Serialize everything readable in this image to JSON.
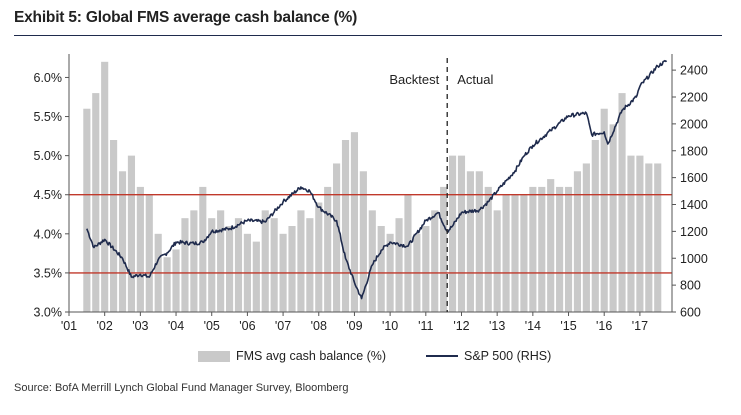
{
  "title": "Exhibit 5: Global FMS average cash balance (%)",
  "source": "Source: BofA Merrill Lynch Global Fund Manager Survey, Bloomberg",
  "legend": {
    "bars": "FMS avg cash balance (%)",
    "line": "S&P 500 (RHS)"
  },
  "annotations": {
    "left": "Backtest",
    "right": "Actual"
  },
  "colors": {
    "bars": "#c9c9c9",
    "line": "#1f2b4d",
    "threshold": "#c0392b",
    "divider": "#222222"
  },
  "chart_data": {
    "type": "bar",
    "title": "Exhibit 5: Global FMS average cash balance (%)",
    "x_ticks": [
      "'01",
      "'02",
      "'03",
      "'04",
      "'05",
      "'06",
      "'07",
      "'08",
      "'09",
      "'10",
      "'11",
      "'12",
      "'13",
      "'14",
      "'15",
      "'16",
      "'17"
    ],
    "y_left": {
      "range": [
        3.0,
        6.3
      ],
      "ticks": [
        "3.0%",
        "3.5%",
        "4.0%",
        "4.5%",
        "5.0%",
        "5.5%",
        "6.0%"
      ],
      "tick_values": [
        3.0,
        3.5,
        4.0,
        4.5,
        5.0,
        5.5,
        6.0
      ]
    },
    "y_right": {
      "range": [
        600,
        2520
      ],
      "ticks": [
        "600",
        "800",
        "1000",
        "1200",
        "1400",
        "1600",
        "1800",
        "2000",
        "2200",
        "2400"
      ],
      "tick_values": [
        600,
        800,
        1000,
        1200,
        1400,
        1600,
        1800,
        2000,
        2200,
        2400
      ]
    },
    "reference_lines": [
      4.5,
      3.5
    ],
    "divider_year": 2011.6,
    "series": [
      {
        "name": "FMS avg cash balance (%)",
        "kind": "bar",
        "axis": "left",
        "points": [
          [
            2001.5,
            5.6
          ],
          [
            2001.75,
            5.8
          ],
          [
            2002,
            6.2
          ],
          [
            2002.25,
            5.2
          ],
          [
            2002.5,
            4.8
          ],
          [
            2002.75,
            5.0
          ],
          [
            2003,
            4.6
          ],
          [
            2003.25,
            4.5
          ],
          [
            2003.5,
            4.0
          ],
          [
            2003.75,
            3.7
          ],
          [
            2004,
            3.8
          ],
          [
            2004.25,
            4.2
          ],
          [
            2004.5,
            4.3
          ],
          [
            2004.75,
            4.6
          ],
          [
            2005,
            4.2
          ],
          [
            2005.25,
            4.3
          ],
          [
            2005.5,
            4.1
          ],
          [
            2005.75,
            4.2
          ],
          [
            2006,
            4.0
          ],
          [
            2006.25,
            3.9
          ],
          [
            2006.5,
            4.3
          ],
          [
            2006.75,
            4.2
          ],
          [
            2007,
            4.0
          ],
          [
            2007.25,
            4.1
          ],
          [
            2007.5,
            4.3
          ],
          [
            2007.75,
            4.2
          ],
          [
            2008,
            4.4
          ],
          [
            2008.25,
            4.6
          ],
          [
            2008.5,
            4.9
          ],
          [
            2008.75,
            5.2
          ],
          [
            2009,
            5.3
          ],
          [
            2009.25,
            4.8
          ],
          [
            2009.5,
            4.3
          ],
          [
            2009.75,
            4.1
          ],
          [
            2010,
            4.0
          ],
          [
            2010.25,
            4.2
          ],
          [
            2010.5,
            4.5
          ],
          [
            2010.75,
            4.0
          ],
          [
            2011,
            4.1
          ],
          [
            2011.25,
            4.3
          ],
          [
            2011.5,
            4.6
          ],
          [
            2011.75,
            5.0
          ],
          [
            2012,
            5.0
          ],
          [
            2012.25,
            4.8
          ],
          [
            2012.5,
            4.8
          ],
          [
            2012.75,
            4.6
          ],
          [
            2013,
            4.3
          ],
          [
            2013.25,
            4.5
          ],
          [
            2013.5,
            4.5
          ],
          [
            2013.75,
            4.5
          ],
          [
            2014,
            4.6
          ],
          [
            2014.25,
            4.6
          ],
          [
            2014.5,
            4.7
          ],
          [
            2014.75,
            4.6
          ],
          [
            2015,
            4.6
          ],
          [
            2015.25,
            4.8
          ],
          [
            2015.5,
            4.9
          ],
          [
            2015.75,
            5.2
          ],
          [
            2016,
            5.6
          ],
          [
            2016.25,
            5.4
          ],
          [
            2016.5,
            5.8
          ],
          [
            2016.75,
            5.0
          ],
          [
            2017,
            5.0
          ],
          [
            2017.25,
            4.9
          ],
          [
            2017.5,
            4.9
          ]
        ]
      },
      {
        "name": "S&P 500 (RHS)",
        "kind": "line",
        "axis": "right",
        "points": [
          [
            2001.5,
            1220
          ],
          [
            2001.7,
            1080
          ],
          [
            2002,
            1140
          ],
          [
            2002.5,
            1000
          ],
          [
            2002.75,
            860
          ],
          [
            2003,
            880
          ],
          [
            2003.25,
            860
          ],
          [
            2003.5,
            990
          ],
          [
            2003.75,
            1040
          ],
          [
            2004,
            1120
          ],
          [
            2004.5,
            1110
          ],
          [
            2004.75,
            1120
          ],
          [
            2005,
            1200
          ],
          [
            2005.5,
            1220
          ],
          [
            2006,
            1280
          ],
          [
            2006.5,
            1270
          ],
          [
            2007,
            1420
          ],
          [
            2007.5,
            1530
          ],
          [
            2007.75,
            1500
          ],
          [
            2008,
            1380
          ],
          [
            2008.5,
            1280
          ],
          [
            2008.75,
            1000
          ],
          [
            2009,
            820
          ],
          [
            2009.2,
            700
          ],
          [
            2009.5,
            950
          ],
          [
            2009.75,
            1060
          ],
          [
            2010,
            1120
          ],
          [
            2010.5,
            1090
          ],
          [
            2011,
            1280
          ],
          [
            2011.35,
            1340
          ],
          [
            2011.6,
            1200
          ],
          [
            2011.75,
            1240
          ],
          [
            2012,
            1340
          ],
          [
            2012.5,
            1360
          ],
          [
            2012.75,
            1420
          ],
          [
            2013,
            1500
          ],
          [
            2013.5,
            1650
          ],
          [
            2013.75,
            1760
          ],
          [
            2014,
            1840
          ],
          [
            2014.5,
            1950
          ],
          [
            2015,
            2060
          ],
          [
            2015.5,
            2080
          ],
          [
            2015.65,
            1920
          ],
          [
            2016,
            1940
          ],
          [
            2016.1,
            1850
          ],
          [
            2016.5,
            2100
          ],
          [
            2016.9,
            2200
          ],
          [
            2017,
            2280
          ],
          [
            2017.5,
            2430
          ],
          [
            2017.75,
            2470
          ]
        ]
      }
    ],
    "xlabel": "",
    "ylabel": "",
    "grid": false,
    "legend_position": "bottom"
  }
}
